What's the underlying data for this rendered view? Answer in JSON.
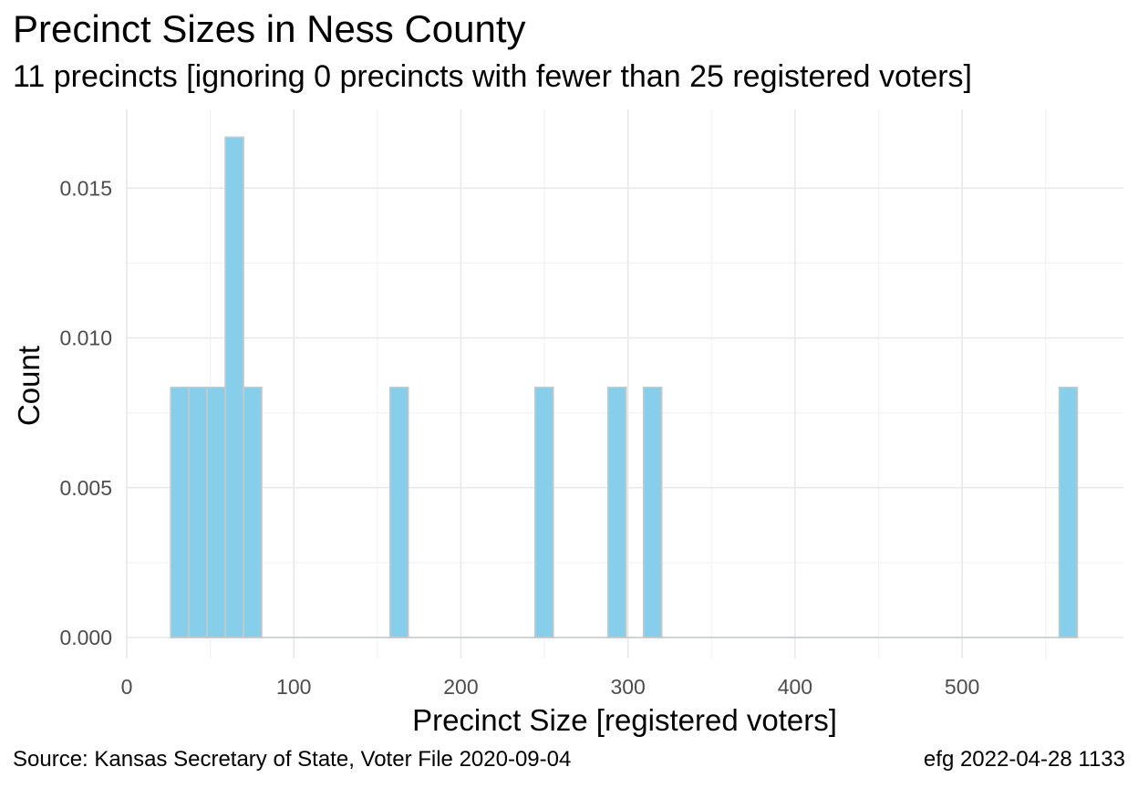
{
  "chart_data": {
    "type": "bar",
    "title": "Precinct Sizes in Ness County",
    "subtitle": "11 precincts [ignoring 0 precincts with fewer than 25 registered voters]",
    "xlabel": "Precinct Size [registered voters]",
    "ylabel": "Count",
    "xlim": [
      0,
      580
    ],
    "ylim": [
      0,
      0.0168
    ],
    "x_ticks": [
      0,
      100,
      200,
      300,
      400,
      500
    ],
    "x_tick_labels": [
      "0",
      "100",
      "200",
      "300",
      "400",
      "500"
    ],
    "y_ticks": [
      0,
      0.005,
      0.01,
      0.015
    ],
    "y_tick_labels": [
      "0.000",
      "0.005",
      "0.010",
      "0.015"
    ],
    "grid": true,
    "bins": [
      {
        "x0": 26.3,
        "x1": 37.2,
        "value": 0.00835
      },
      {
        "x0": 37.2,
        "x1": 48.1,
        "value": 0.00835
      },
      {
        "x0": 48.1,
        "x1": 59.0,
        "value": 0.00835
      },
      {
        "x0": 59.0,
        "x1": 69.9,
        "value": 0.0167
      },
      {
        "x0": 69.9,
        "x1": 80.8,
        "value": 0.00835
      },
      {
        "x0": 157.6,
        "x1": 168.5,
        "value": 0.00835
      },
      {
        "x0": 244.4,
        "x1": 255.3,
        "value": 0.00835
      },
      {
        "x0": 288.0,
        "x1": 298.9,
        "value": 0.00835
      },
      {
        "x0": 309.3,
        "x1": 320.2,
        "value": 0.00835
      },
      {
        "x0": 558.1,
        "x1": 569.0,
        "value": 0.00835
      }
    ],
    "baseline_range": [
      26.3,
      569.0
    ]
  },
  "colors": {
    "bar_fill": "#87ceeb",
    "bar_stroke": "#c4c9cc",
    "grid_major": "#e8e8e8",
    "grid_minor": "#f3f3f3"
  },
  "caption": {
    "source": "Source:  Kansas Secretary of State, Voter File  2020-09-04",
    "stamp": "efg 2022-04-28 1133"
  }
}
